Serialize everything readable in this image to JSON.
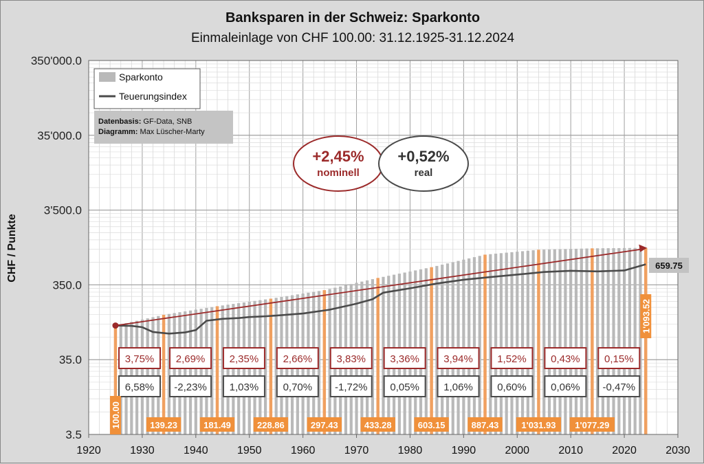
{
  "title": "Banksparen  in der Schweiz: Sparkonto",
  "subtitle": "Einmaleinlage von CHF 100.00: 31.12.1925-31.12.2024",
  "chart_data": {
    "type": "bar",
    "ylabel": "CHF / Punkte",
    "yscale": "log",
    "ylim": [
      3.5,
      350000
    ],
    "xlim": [
      1920,
      2030
    ],
    "grid": true,
    "x_ticks": [
      1920,
      1930,
      1940,
      1950,
      1960,
      1970,
      1980,
      1990,
      2000,
      2010,
      2020,
      2030
    ],
    "y_ticks": [
      {
        "value": 3.5,
        "label": "3.5"
      },
      {
        "value": 35,
        "label": "35.0"
      },
      {
        "value": 350,
        "label": "350.0"
      },
      {
        "value": 3500,
        "label": "3'500.0"
      },
      {
        "value": 35000,
        "label": "35'000.0"
      },
      {
        "value": 350000,
        "label": "350'000.0"
      }
    ],
    "legend": [
      "Sparkonto",
      "Teuerungsindex"
    ],
    "legend_position": "top-left",
    "series": [
      {
        "name": "Sparkonto",
        "x": [
          1925,
          1934,
          1944,
          1954,
          1964,
          1974,
          1984,
          1994,
          2004,
          2014,
          2024
        ],
        "values": [
          100.0,
          139.23,
          181.49,
          228.86,
          297.43,
          433.28,
          603.15,
          887.43,
          1031.93,
          1077.29,
          1093.52
        ],
        "labels": [
          "100.00",
          "139.23",
          "181.49",
          "228.86",
          "297.43",
          "433.28",
          "603.15",
          "887.43",
          "1'031.93",
          "1'077.29",
          "1'093.52"
        ]
      },
      {
        "name": "Teuerungsindex",
        "x": [
          1925,
          1928,
          1930,
          1932,
          1935,
          1938,
          1940,
          1942,
          1945,
          1948,
          1950,
          1953,
          1955,
          1960,
          1965,
          1970,
          1973,
          1975,
          1980,
          1985,
          1990,
          1995,
          2000,
          2005,
          2010,
          2015,
          2020,
          2024
        ],
        "values": [
          100,
          99,
          95,
          82,
          78,
          81,
          87,
          116,
          123,
          126,
          130,
          133,
          136,
          145,
          163,
          196,
          225,
          275,
          315,
          365,
          410,
          445,
          480,
          520,
          540,
          530,
          545,
          659.75
        ]
      }
    ],
    "end_label": "659.75",
    "nominal_rates": [
      "3,75%",
      "2,69%",
      "2,35%",
      "2,66%",
      "3,83%",
      "3,36%",
      "3,94%",
      "1,52%",
      "0,43%",
      "0,15%"
    ],
    "real_rates": [
      "6,58%",
      "-2,23%",
      "1,03%",
      "0,70%",
      "-1,72%",
      "0,05%",
      "1,06%",
      "0,60%",
      "0,06%",
      "-0,47%"
    ],
    "summary": {
      "nominal_value": "+2,45%",
      "nominal_label": "nominell",
      "real_value": "+0,52%",
      "real_label": "real"
    },
    "source_note": {
      "line1_label": "Datenbasis:",
      "line1_value": "GF-Data, SNB",
      "line2_label": "Diagramm:",
      "line2_value": "Max Lüscher-Marty"
    },
    "colors": {
      "bars": "#b9b9b9",
      "decade_bars": "#f0a060",
      "nominal": "#9b2a2a",
      "real": "#4a4a4a",
      "label_box": "#f0903a"
    }
  }
}
